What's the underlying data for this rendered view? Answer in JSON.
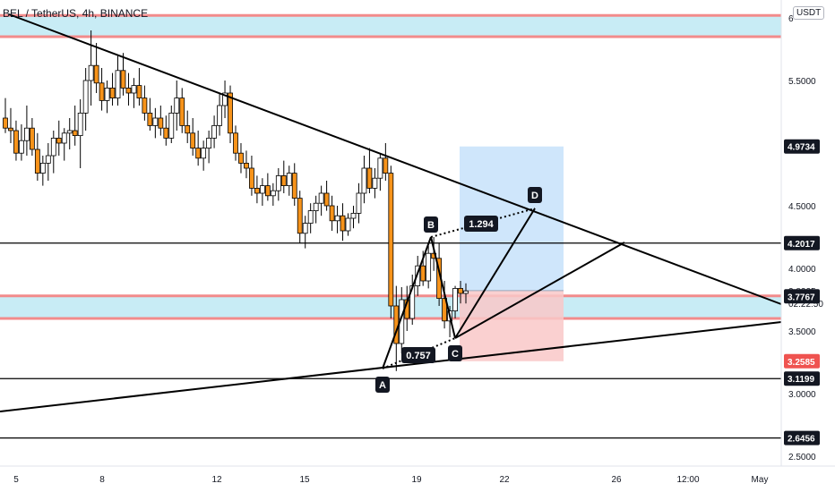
{
  "symbol_title": "BEL / TetherUS, 4h, BINANCE",
  "currency": "USDT",
  "countdown": "02:22:50",
  "colors": {
    "up": "#ffffff",
    "down": "#f7931a",
    "zone_fill": "#c8ecf5",
    "zone_line": "#f28b8b",
    "target_fill": "#cfe6fb",
    "stop_fill": "#f9c8c8",
    "badge_dark": "#131722",
    "badge_red": "#ef5350"
  },
  "chart_data": {
    "type": "candlestick",
    "title": "BEL / TetherUS, 4h, BINANCE",
    "ylim": [
      2.4,
      6.1
    ],
    "x_tick_labels": [
      "5",
      "8",
      "12",
      "15",
      "19",
      "22",
      "26",
      "12:00",
      "May"
    ],
    "y_tick_labels": [
      "6",
      "5.5000",
      "4.5000",
      "4.0000",
      "3.5000",
      "3.0000",
      "2.5000"
    ],
    "price_labels": [
      {
        "value": 4.9734,
        "text": "4.9734",
        "style": "dark"
      },
      {
        "value": 4.2017,
        "text": "4.2017",
        "style": "dark"
      },
      {
        "value": 3.8225,
        "text": "3.8225",
        "style": "plain"
      },
      {
        "value": 3.7767,
        "text": "3.7767",
        "style": "dark"
      },
      {
        "value": 3.2585,
        "text": "3.2585",
        "style": "red"
      },
      {
        "value": 3.1199,
        "text": "3.1199",
        "style": "dark"
      },
      {
        "value": 2.6456,
        "text": "2.6456",
        "style": "dark"
      }
    ],
    "horizontal_levels": [
      4.2017,
      3.1199,
      2.6456
    ],
    "zones": [
      {
        "top": 6.02,
        "bottom": 5.85
      },
      {
        "top": 3.78,
        "bottom": 3.6
      }
    ],
    "position": {
      "target": 4.9734,
      "entry": 3.8225,
      "stop": 3.2585
    },
    "pattern": {
      "points": [
        {
          "label": "A",
          "price": 3.18
        },
        {
          "label": "B",
          "price": 4.25
        },
        {
          "label": "C",
          "price": 3.5
        },
        {
          "label": "D",
          "price": 4.45
        }
      ],
      "ratios": [
        "0.757",
        "1.294"
      ]
    },
    "candles": [
      [
        5.2,
        5.36,
        5.08,
        5.12
      ],
      [
        5.12,
        5.28,
        5.0,
        5.1
      ],
      [
        5.1,
        5.18,
        4.86,
        4.92
      ],
      [
        4.92,
        5.15,
        4.86,
        5.02
      ],
      [
        5.02,
        5.3,
        4.9,
        5.12
      ],
      [
        5.12,
        5.2,
        4.9,
        4.95
      ],
      [
        4.95,
        5.08,
        4.7,
        4.76
      ],
      [
        4.76,
        4.9,
        4.66,
        4.84
      ],
      [
        4.84,
        5.0,
        4.7,
        4.9
      ],
      [
        4.9,
        5.1,
        4.76,
        5.04
      ],
      [
        5.04,
        5.18,
        4.9,
        5.0
      ],
      [
        5.0,
        5.12,
        4.86,
        5.08
      ],
      [
        5.08,
        5.2,
        4.95,
        5.1
      ],
      [
        5.1,
        5.3,
        4.98,
        5.06
      ],
      [
        5.06,
        5.35,
        4.8,
        5.24
      ],
      [
        5.24,
        5.6,
        5.1,
        5.5
      ],
      [
        5.5,
        5.9,
        5.3,
        5.62
      ],
      [
        5.62,
        5.8,
        5.4,
        5.48
      ],
      [
        5.48,
        5.6,
        5.26,
        5.34
      ],
      [
        5.34,
        5.5,
        5.24,
        5.44
      ],
      [
        5.44,
        5.56,
        5.3,
        5.36
      ],
      [
        5.36,
        5.7,
        5.3,
        5.58
      ],
      [
        5.58,
        5.72,
        5.38,
        5.44
      ],
      [
        5.44,
        5.56,
        5.3,
        5.4
      ],
      [
        5.4,
        5.52,
        5.28,
        5.46
      ],
      [
        5.46,
        5.6,
        5.3,
        5.36
      ],
      [
        5.36,
        5.46,
        5.18,
        5.24
      ],
      [
        5.24,
        5.36,
        5.1,
        5.14
      ],
      [
        5.14,
        5.28,
        5.04,
        5.2
      ],
      [
        5.2,
        5.3,
        5.06,
        5.12
      ],
      [
        5.12,
        5.22,
        4.98,
        5.04
      ],
      [
        5.04,
        5.3,
        5.0,
        5.24
      ],
      [
        5.24,
        5.5,
        5.1,
        5.36
      ],
      [
        5.36,
        5.44,
        5.08,
        5.14
      ],
      [
        5.14,
        5.26,
        5.0,
        5.08
      ],
      [
        5.08,
        5.2,
        4.9,
        4.96
      ],
      [
        4.96,
        5.1,
        4.82,
        4.88
      ],
      [
        4.88,
        5.02,
        4.78,
        4.96
      ],
      [
        4.96,
        5.1,
        4.84,
        5.04
      ],
      [
        5.04,
        5.22,
        4.96,
        5.14
      ],
      [
        5.14,
        5.4,
        5.06,
        5.3
      ],
      [
        5.3,
        5.5,
        5.2,
        5.4
      ],
      [
        5.4,
        5.46,
        5.0,
        5.08
      ],
      [
        5.08,
        5.14,
        4.86,
        4.92
      ],
      [
        4.92,
        5.0,
        4.76,
        4.84
      ],
      [
        4.84,
        4.94,
        4.72,
        4.8
      ],
      [
        4.8,
        4.9,
        4.58,
        4.64
      ],
      [
        4.64,
        4.74,
        4.52,
        4.6
      ],
      [
        4.6,
        4.72,
        4.5,
        4.66
      ],
      [
        4.66,
        4.76,
        4.54,
        4.58
      ],
      [
        4.58,
        4.68,
        4.5,
        4.62
      ],
      [
        4.62,
        4.8,
        4.54,
        4.74
      ],
      [
        4.74,
        4.86,
        4.6,
        4.66
      ],
      [
        4.66,
        4.82,
        4.58,
        4.76
      ],
      [
        4.76,
        4.84,
        4.5,
        4.56
      ],
      [
        4.56,
        4.62,
        4.2,
        4.28
      ],
      [
        4.28,
        4.42,
        4.16,
        4.36
      ],
      [
        4.36,
        4.52,
        4.28,
        4.46
      ],
      [
        4.46,
        4.58,
        4.36,
        4.52
      ],
      [
        4.52,
        4.66,
        4.42,
        4.6
      ],
      [
        4.6,
        4.7,
        4.46,
        4.5
      ],
      [
        4.5,
        4.58,
        4.3,
        4.38
      ],
      [
        4.38,
        4.5,
        4.28,
        4.42
      ],
      [
        4.42,
        4.52,
        4.22,
        4.3
      ],
      [
        4.3,
        4.44,
        4.26,
        4.4
      ],
      [
        4.4,
        4.5,
        4.32,
        4.44
      ],
      [
        4.44,
        4.68,
        4.36,
        4.6
      ],
      [
        4.6,
        4.9,
        4.52,
        4.8
      ],
      [
        4.8,
        4.96,
        4.6,
        4.64
      ],
      [
        4.64,
        4.8,
        4.56,
        4.72
      ],
      [
        4.72,
        4.92,
        4.62,
        4.88
      ],
      [
        4.88,
        5.0,
        4.7,
        4.76
      ],
      [
        4.76,
        4.82,
        3.6,
        3.7
      ],
      [
        3.7,
        3.86,
        3.18,
        3.4
      ],
      [
        3.4,
        3.85,
        3.32,
        3.75
      ],
      [
        3.75,
        3.86,
        3.5,
        3.6
      ],
      [
        3.6,
        3.95,
        3.55,
        3.86
      ],
      [
        3.86,
        4.1,
        3.78,
        4.02
      ],
      [
        4.02,
        4.14,
        3.86,
        3.9
      ],
      [
        3.9,
        4.18,
        3.84,
        4.12
      ],
      [
        4.12,
        4.25,
        3.98,
        4.08
      ],
      [
        4.08,
        4.2,
        3.7,
        3.76
      ],
      [
        3.76,
        3.9,
        3.52,
        3.58
      ],
      [
        3.58,
        3.7,
        3.45,
        3.66
      ],
      [
        3.66,
        3.86,
        3.6,
        3.84
      ],
      [
        3.84,
        3.9,
        3.72,
        3.8
      ],
      [
        3.8,
        3.88,
        3.72,
        3.82
      ]
    ]
  }
}
